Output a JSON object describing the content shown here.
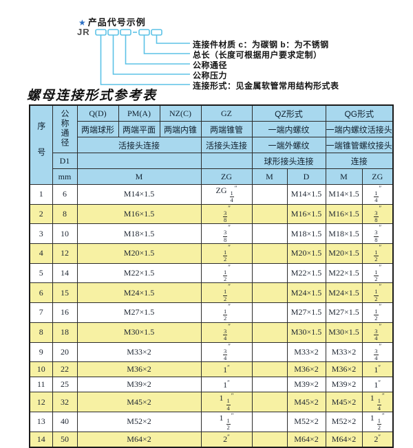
{
  "colors": {
    "header-bg": "#A8D8EE",
    "row-alt-bg": "#F7F1A3",
    "line-cyan": "#5BC2E6",
    "star-blue": "#2B6FC4"
  },
  "diagram": {
    "star": "★",
    "heading": "产品代号示例",
    "code_prefix": "JR",
    "labels": [
      "连接件材质  c：为碳钢  b：为不锈钢",
      "总长（长度可根据用户要求定制）",
      "公称通径",
      "公称压力",
      "连接形式：见金属软管常用结构形式表"
    ]
  },
  "table_title": "螺母连接形式参考表",
  "table": {
    "header": {
      "seq": "序号",
      "dn": "公称通径",
      "q": "Q(D)",
      "pm": "PM(A)",
      "nz": "NZ(C)",
      "gz": "GZ",
      "qz": "QZ形式",
      "qg": "QG形式",
      "q_desc": "两端球形",
      "pm_desc": "两端平面",
      "nz_desc": "两端内锥",
      "gz_desc": "两端锥管",
      "qz_desc1": "一端内螺纹",
      "qg_desc1": "一端内螺纹活接头",
      "conn_main": "活接头连接",
      "conn_gz": "活接头连接",
      "qz_desc2": "一端外螺纹",
      "qg_desc2": "一端锥管螺纹接头",
      "d1": "D1",
      "qz_conn": "球形接头连接",
      "qg_conn": "连接",
      "mm": "mm",
      "m": "M",
      "zg": "ZG",
      "qz_m": "M",
      "qz_d": "D",
      "qg_m": "M",
      "qg_zg": "ZG"
    },
    "rows": [
      [
        "1",
        "6",
        "M14×1.5",
        "ZG 1/4″",
        "",
        "M14×1.5",
        "M14×1.5",
        "1/4″"
      ],
      [
        "2",
        "8",
        "M16×1.5",
        "3/8″",
        "",
        "M16×1.5",
        "M16×1.5",
        "3/8″"
      ],
      [
        "3",
        "10",
        "M18×1.5",
        "3/8″",
        "",
        "M18×1.5",
        "M18×1.5",
        "3/8″"
      ],
      [
        "4",
        "12",
        "M20×1.5",
        "1/2″",
        "",
        "M20×1.5",
        "M20×1.5",
        "1/2″"
      ],
      [
        "5",
        "14",
        "M22×1.5",
        "1/2″",
        "",
        "M22×1.5",
        "M22×1.5",
        "1/2″"
      ],
      [
        "6",
        "15",
        "M24×1.5",
        "1/2″",
        "",
        "M24×1.5",
        "M24×1.5",
        "1/2″"
      ],
      [
        "7",
        "16",
        "M27×1.5",
        "1/2″",
        "",
        "M27×1.5",
        "M27×1.5",
        "1/2″"
      ],
      [
        "8",
        "18",
        "M30×1.5",
        "3/4″",
        "",
        "M30×1.5",
        "M30×1.5",
        "3/4″"
      ],
      [
        "9",
        "20",
        "M33×2",
        "3/4″",
        "",
        "M33×2",
        "M33×2",
        "3/4″"
      ],
      [
        "10",
        "22",
        "M36×2",
        "1″",
        "",
        "M36×2",
        "M36×2",
        "1″"
      ],
      [
        "11",
        "25",
        "M39×2",
        "1″",
        "",
        "M39×2",
        "M39×2",
        "1″"
      ],
      [
        "12",
        "32",
        "M45×2",
        "1 1/4″",
        "",
        "M45×2",
        "M45×2",
        "1 1/4″"
      ],
      [
        "13",
        "40",
        "M52×2",
        "1 1/2″",
        "",
        "M52×2",
        "M52×2",
        "1 1/2″"
      ],
      [
        "14",
        "50",
        "M64×2",
        "2″",
        "",
        "M64×2",
        "M64×2",
        "2″"
      ]
    ]
  }
}
